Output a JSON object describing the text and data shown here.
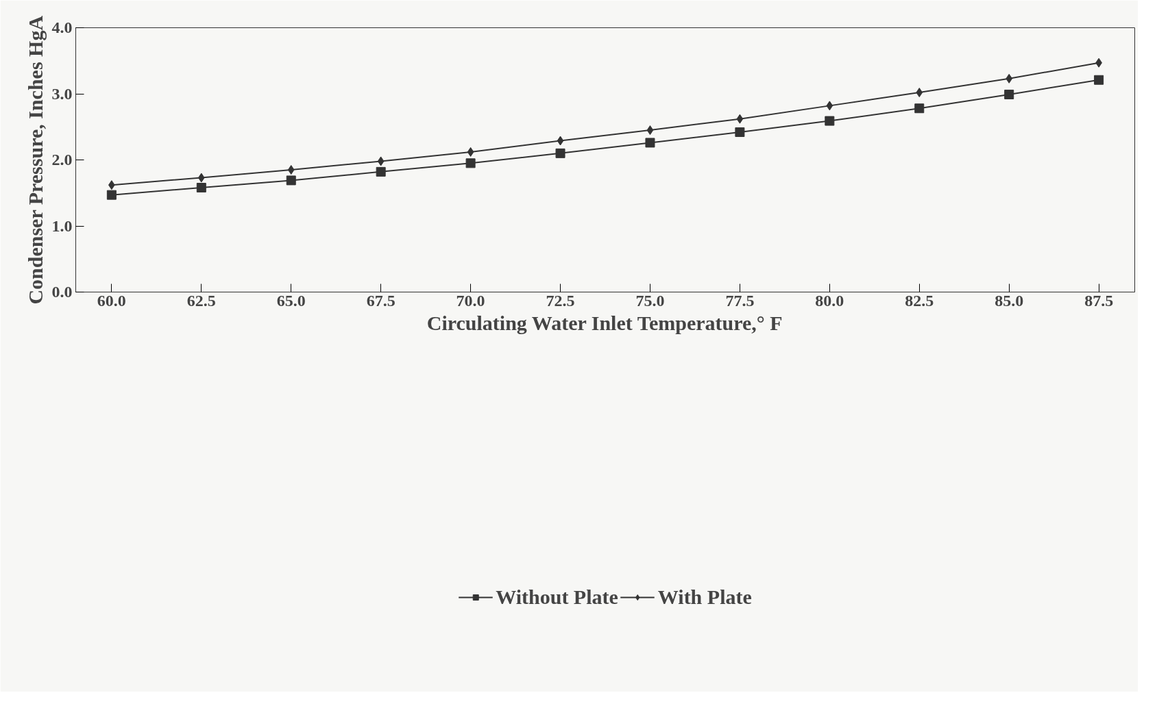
{
  "chart_data": {
    "type": "line",
    "xlabel": "Circulating Water Inlet Temperature,° F",
    "ylabel": "Condenser Pressure, Inches HgA",
    "x": [
      60.0,
      62.5,
      65.0,
      67.5,
      70.0,
      72.5,
      75.0,
      77.5,
      80.0,
      82.5,
      85.0,
      87.5
    ],
    "series": [
      {
        "name": "Without Plate",
        "color": "#333333",
        "marker": "square",
        "values": [
          1.47,
          1.58,
          1.69,
          1.82,
          1.95,
          2.1,
          2.26,
          2.42,
          2.59,
          2.78,
          2.99,
          3.21
        ]
      },
      {
        "name": "With Plate",
        "color": "#333333",
        "marker": "diamond",
        "values": [
          1.62,
          1.73,
          1.85,
          1.98,
          2.12,
          2.29,
          2.45,
          2.62,
          2.82,
          3.02,
          3.23,
          3.47
        ]
      }
    ],
    "xlim": [
      59.0,
      88.5
    ],
    "ylim": [
      0.0,
      4.0
    ],
    "xticks": [
      {
        "value": 60,
        "label": "60.0"
      },
      {
        "value": 62.5,
        "label": "62.5"
      },
      {
        "value": 65,
        "label": "65.0"
      },
      {
        "value": 67.5,
        "label": "67.5"
      },
      {
        "value": 70,
        "label": "70.0"
      },
      {
        "value": 72.5,
        "label": "72.5"
      },
      {
        "value": 75,
        "label": "75.0"
      },
      {
        "value": 77.5,
        "label": "77.5"
      },
      {
        "value": 80,
        "label": "80.0"
      },
      {
        "value": 82.5,
        "label": "82.5"
      },
      {
        "value": 85,
        "label": "85.0"
      },
      {
        "value": 87.5,
        "label": "87.5"
      }
    ],
    "yticks": [
      {
        "value": 0,
        "label": "0.0"
      },
      {
        "value": 1,
        "label": "1.0"
      },
      {
        "value": 2,
        "label": "2.0"
      },
      {
        "value": 3,
        "label": "3.0"
      },
      {
        "value": 4,
        "label": "4.0"
      }
    ],
    "grid": false,
    "legend": "bottom",
    "line_style": "solid"
  }
}
